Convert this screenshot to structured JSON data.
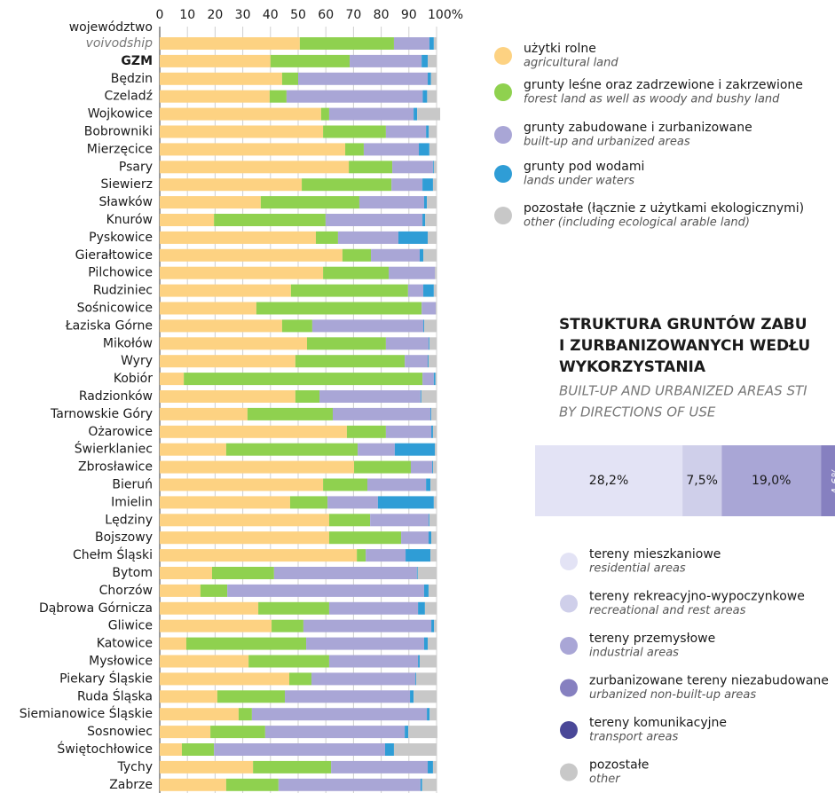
{
  "chart_data": [
    {
      "type": "stacked-bar-horizontal",
      "y_label": "województwo",
      "categories": [
        "voivodship",
        "GZM",
        "Będzin",
        "Czeladź",
        "Wojkowice",
        "Bobrowniki",
        "Mierzęcice",
        "Psary",
        "Siewierz",
        "Sławków",
        "Knurów",
        "Pyskowice",
        "Gierałtowice",
        "Pilchowice",
        "Rudziniec",
        "Sośnicowice",
        "Łaziska Górne",
        "Mikołów",
        "Wyry",
        "Kobiór",
        "Radzionków",
        "Tarnowskie Góry",
        "Ożarowice",
        "Świerklaniec",
        "Zbrosławice",
        "Bieruń",
        "Imielin",
        "Lędziny",
        "Bojszowy",
        "Chełm Śląski",
        "Bytom",
        "Chorzów",
        "Dąbrowa Górnicza",
        "Gliwice",
        "Katowice",
        "Mysłowice",
        "Piekary Śląskie",
        "Ruda Śląska",
        "Siemianowice Śląskie",
        "Sosnowiec",
        "Świętochłowice",
        "Tychy",
        "Zabrze"
      ],
      "series": [
        {
          "name": "użytki rolne",
          "name_en": "agricultural land",
          "color": "#fdd282",
          "values": [
            50.6,
            40,
            44.2,
            39.7,
            58.3,
            59,
            67,
            68.3,
            51.3,
            36.5,
            19.6,
            56.4,
            66,
            59,
            47.4,
            34.9,
            44.2,
            53.2,
            49,
            8.7,
            49,
            31.7,
            67.6,
            24,
            70.2,
            59,
            47.1,
            61.2,
            61.2,
            71.2,
            18.9,
            14.7,
            35.6,
            40.4,
            9.6,
            32.1,
            46.8,
            20.8,
            28.5,
            18.3,
            8,
            33.7,
            24
          ]
        },
        {
          "name": "grunty leśne oraz zadrzewione i zakrzewione",
          "name_en": "forest land as well as woody and bushy land",
          "color": "#8fd14f",
          "values": [
            34,
            28.6,
            5.8,
            6.1,
            2.9,
            22.7,
            6.7,
            15.7,
            32.4,
            35.6,
            40.3,
            8,
            10.3,
            23.7,
            42.3,
            59.7,
            10.9,
            28.5,
            39.5,
            86.2,
            8.7,
            30.8,
            14.1,
            47.5,
            20.5,
            16,
            13.5,
            14.8,
            26,
            3.2,
            22.4,
            9.7,
            25.6,
            11.5,
            43.3,
            29.1,
            8,
            24.4,
            4.8,
            19.8,
            11.6,
            28.2,
            18.9
          ]
        },
        {
          "name": "grunty zabudowane i zurbanizowane",
          "name_en": "built-up and urbanized areas",
          "color": "#a9a6d6",
          "values": [
            12.8,
            26,
            46.8,
            49.2,
            30.5,
            14.5,
            19.9,
            14.7,
            11.2,
            23.4,
            35,
            21.8,
            17.6,
            16.7,
            5.5,
            5.1,
            40.1,
            15.4,
            8.3,
            4.1,
            36.5,
            35.3,
            16.4,
            13.4,
            7.7,
            21.2,
            18.2,
            21.1,
            9.9,
            14.4,
            51.6,
            71.1,
            32.1,
            46.2,
            42.6,
            32.1,
            37.5,
            45.2,
            63.2,
            50.4,
            61.8,
            34.9,
            51.3
          ]
        },
        {
          "name": "grunty pod wodami",
          "name_en": "lands under waters",
          "color": "#2f9dd6",
          "values": [
            1.6,
            2.2,
            1.2,
            1.6,
            1.3,
            1,
            3.8,
            0.3,
            3.8,
            1,
            1,
            10.6,
            1.3,
            0,
            3.8,
            0,
            0.3,
            0.3,
            0.3,
            0.6,
            0.3,
            0.3,
            0.6,
            14.5,
            0.3,
            1.6,
            20.2,
            0.3,
            1,
            9,
            0.3,
            1.6,
            2.5,
            1,
            1.3,
            0.6,
            0.3,
            1.3,
            1,
            1.3,
            3.2,
            1.9,
            0.6
          ]
        },
        {
          "name": "pozostałe (łącznie z użytkami ekologicznymi)",
          "name_en": "other (including ecological arable land)",
          "color": "#c8c8c8",
          "values": [
            1,
            3.2,
            2,
            3.5,
            8.3,
            2.8,
            2.6,
            1,
            1.3,
            3.5,
            4.1,
            3.2,
            4.8,
            0.6,
            1,
            0.3,
            4.5,
            2.6,
            2.9,
            0.4,
            5.5,
            1.9,
            1.3,
            0.6,
            1.3,
            2.2,
            1,
            2.6,
            1.9,
            2.2,
            6.8,
            2.9,
            4.3,
            0.9,
            3.2,
            6.1,
            7.4,
            8.3,
            2.5,
            10.5,
            15.4,
            1.3,
            5.2
          ]
        }
      ],
      "xlim": [
        0,
        100
      ],
      "xticks": [
        0,
        10,
        20,
        30,
        40,
        50,
        60,
        70,
        80,
        90,
        {
          "value": 100,
          "label": "100%"
        }
      ],
      "grid": true
    },
    {
      "type": "stacked-bar-single",
      "title": [
        "STRUKTURA GRUNTÓW ZABU",
        "I ZURBANIZOWANYCH WEDŁU",
        "WYKORZYSTANIA"
      ],
      "subtitle": [
        "BUILT-UP AND URBANIZED AREAS STI",
        "BY DIRECTIONS OF USE"
      ],
      "series": [
        {
          "name": "tereny mieszkaniowe",
          "name_en": "residential areas",
          "color": "#e3e3f5",
          "values": [
            28.2
          ],
          "value_labels": [
            "28,2%"
          ]
        },
        {
          "name": "tereny rekreacyjno-wypoczynkowe",
          "name_en": "recreational and rest areas",
          "color": "#cfcfea",
          "values": [
            7.5
          ],
          "value_labels": [
            "7,5%"
          ]
        },
        {
          "name": "tereny przemysłowe",
          "name_en": "industrial areas",
          "color": "#a9a6d6",
          "values": [
            19.0
          ],
          "value_labels": [
            "19,0%"
          ]
        },
        {
          "name": "zurbanizowane tereny niezabudowane",
          "name_en": "urbanized non-built-up areas",
          "color": "#8680c0",
          "values": [
            4.6
          ],
          "value_labels": [
            "4,6%"
          ]
        },
        {
          "name": "tereny komunikacyjne",
          "name_en": "transport areas",
          "color": "#4a4898"
        },
        {
          "name": "pozostałe",
          "name_en": "other",
          "color": "#c8c8c8"
        }
      ]
    }
  ]
}
